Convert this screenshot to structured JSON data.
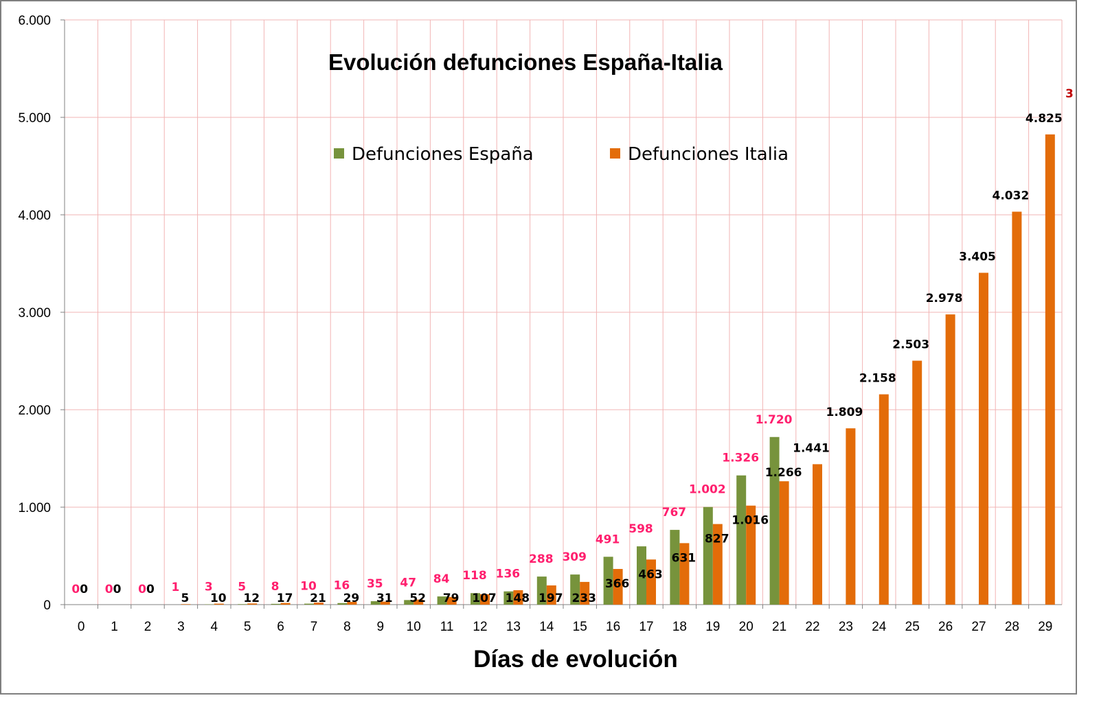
{
  "chart_data": {
    "type": "bar",
    "title": "Evolución defunciones España-Italia",
    "xlabel": "Días de evolución",
    "ylabel": "",
    "ylim": [
      0,
      6000
    ],
    "yticks": [
      0,
      1000,
      2000,
      3000,
      4000,
      5000,
      6000
    ],
    "ytick_labels": [
      "0",
      "1.000",
      "2.000",
      "3.000",
      "4.000",
      "5.000",
      "6.000"
    ],
    "grid": true,
    "legend_position": "top-center",
    "categories": [
      "0",
      "1",
      "2",
      "3",
      "4",
      "5",
      "6",
      "7",
      "8",
      "9",
      "10",
      "11",
      "12",
      "13",
      "14",
      "15",
      "16",
      "17",
      "18",
      "19",
      "20",
      "21",
      "22",
      "23",
      "24",
      "25",
      "26",
      "27",
      "28",
      "29"
    ],
    "series": [
      {
        "name": "Defunciones España",
        "color": "#77933c",
        "label_color": "#ff1f6e",
        "values": [
          0,
          0,
          0,
          1,
          3,
          5,
          8,
          10,
          16,
          35,
          47,
          84,
          118,
          136,
          288,
          309,
          491,
          598,
          767,
          1002,
          1326,
          1720,
          null,
          null,
          null,
          null,
          null,
          null,
          null,
          null
        ],
        "labels": [
          "0",
          "0",
          "0",
          "1",
          "3",
          "5",
          "8",
          "10",
          "16",
          "35",
          "47",
          "84",
          "118",
          "136",
          "288",
          "309",
          "491",
          "598",
          "767",
          "1.002",
          "1.326",
          "1.720",
          "",
          "",
          "",
          "",
          "",
          "",
          "",
          ""
        ]
      },
      {
        "name": "Defunciones Italia",
        "color": "#e36c09",
        "label_color": "#000000",
        "values": [
          0,
          0,
          0,
          5,
          10,
          12,
          17,
          21,
          29,
          31,
          52,
          79,
          107,
          148,
          197,
          233,
          366,
          463,
          631,
          827,
          1016,
          1266,
          1441,
          1809,
          2158,
          2503,
          2978,
          3405,
          4032,
          4825
        ],
        "labels": [
          "0",
          "0",
          "0",
          "5",
          "10",
          "12",
          "17",
          "21",
          "29",
          "31",
          "52",
          "79",
          "107",
          "148",
          "197",
          "233",
          "366",
          "463",
          "631",
          "827",
          "1.016",
          "1.266",
          "1.441",
          "1.809",
          "2.158",
          "2.503",
          "2.978",
          "3.405",
          "4.032",
          "4.825"
        ]
      }
    ],
    "clipped_label": "3",
    "clipped_label_color": "#c00000"
  }
}
